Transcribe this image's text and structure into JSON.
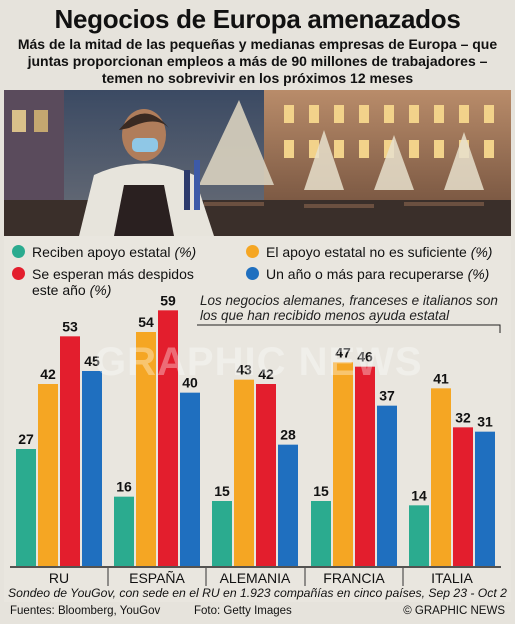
{
  "header": {
    "title": "Negocios de Europa amenazados",
    "subtitle": "Más de la mitad de las pequeñas y medianas empresas de Europa – que juntas proporcionan empleos a más de 90 millones de trabajadores – temen no sobrevivir en los próximos 12 meses"
  },
  "legend": {
    "unit": "(%)",
    "items": [
      {
        "label": "Reciben apoyo estatal",
        "color": "#2bab8f"
      },
      {
        "label": "El apoyo estatal no es suficiente",
        "color": "#f5a623"
      },
      {
        "label": "Se esperan más despidos este año",
        "color": "#e31e2d"
      },
      {
        "label": "Un año o más para recuperarse",
        "color": "#1f6fbf"
      }
    ]
  },
  "annotation": "Los negocios alemanes, franceses e italianos son los que han recibido menos ayuda estatal",
  "watermark": "GRAPHIC NEWS",
  "chart_data": {
    "type": "bar",
    "categories": [
      "RU",
      "ESPAÑA",
      "ALEMANIA",
      "FRANCIA",
      "ITALIA"
    ],
    "series": [
      {
        "name": "Reciben apoyo estatal",
        "values": [
          27,
          16,
          15,
          15,
          14
        ]
      },
      {
        "name": "El apoyo estatal no es suficiente",
        "values": [
          42,
          54,
          43,
          47,
          41
        ]
      },
      {
        "name": "Se esperan más despidos este año",
        "values": [
          53,
          59,
          42,
          46,
          32
        ]
      },
      {
        "name": "Un año o más para recuperarse",
        "values": [
          45,
          40,
          28,
          37,
          31
        ]
      }
    ],
    "colors": [
      "#2bab8f",
      "#f5a623",
      "#e31e2d",
      "#1f6fbf"
    ],
    "ylim": [
      0,
      60
    ],
    "grid": false
  },
  "footer": {
    "survey_note": "Sondeo de YouGov, con sede en el RU en 1.923 compañías en cinco países, Sep 23 - Oct 2",
    "sources": "Fuentes: Bloomberg, YouGov",
    "photo_credit": "Foto: Getty Images",
    "copyright": "© GRAPHIC NEWS"
  }
}
